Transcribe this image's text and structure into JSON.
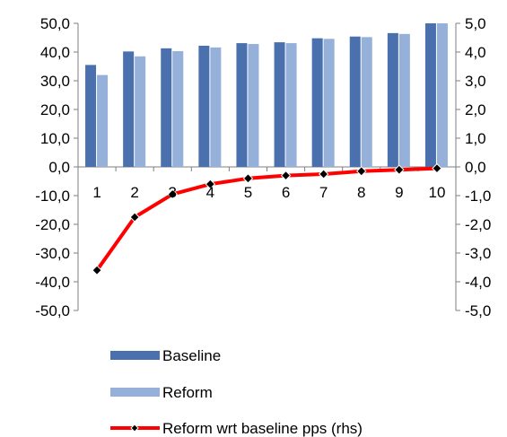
{
  "chart_data": {
    "type": "bar",
    "categories": [
      "1",
      "2",
      "3",
      "4",
      "5",
      "6",
      "7",
      "8",
      "9",
      "10"
    ],
    "series": [
      {
        "name": "Baseline",
        "kind": "bar",
        "axis": "left",
        "color": "#4a70ad",
        "values": [
          35.5,
          40.2,
          41.3,
          42.2,
          43.1,
          43.4,
          44.8,
          45.4,
          46.6,
          50.0
        ]
      },
      {
        "name": "Reform",
        "kind": "bar",
        "axis": "left",
        "color": "#95b0d9",
        "values": [
          32.0,
          38.5,
          40.3,
          41.6,
          42.8,
          43.1,
          44.6,
          45.2,
          46.3,
          50.0
        ]
      },
      {
        "name": "Reform wrt baseline pps (rhs)",
        "kind": "line",
        "axis": "right",
        "color": "#ff0000",
        "marker_color": "#000000",
        "values": [
          -3.6,
          -1.75,
          -0.95,
          -0.6,
          -0.4,
          -0.3,
          -0.25,
          -0.15,
          -0.1,
          -0.05
        ]
      }
    ],
    "y_left": {
      "min": -50,
      "max": 50,
      "step": 10,
      "tick_labels": [
        "50,0",
        "40,0",
        "30,0",
        "20,0",
        "10,0",
        "0,0",
        "-10,0",
        "-20,0",
        "-30,0",
        "-40,0",
        "-50,0"
      ]
    },
    "y_right": {
      "min": -5,
      "max": 5,
      "step": 1,
      "tick_labels": [
        "5,0",
        "4,0",
        "3,0",
        "2,0",
        "1,0",
        "0,0",
        "-1,0",
        "-2,0",
        "-3,0",
        "-4,0",
        "-5,0"
      ]
    },
    "legend_position": "bottom",
    "grid": false
  }
}
